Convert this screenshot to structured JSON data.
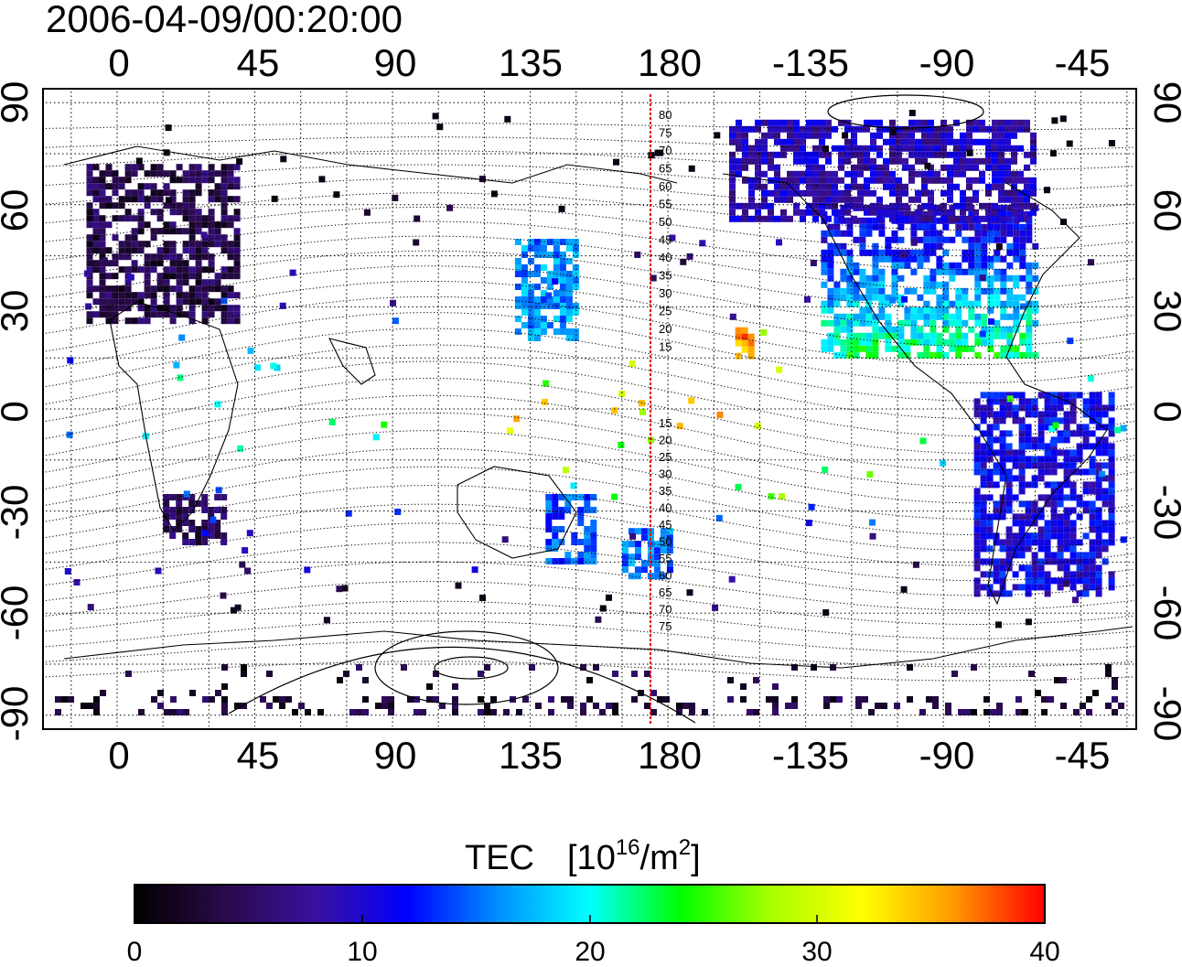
{
  "timestamp": "2006-04-09/00:20:00",
  "axes": {
    "top_lon_ticks": [
      "0",
      "45",
      "90",
      "135",
      "180",
      "-135",
      "-90",
      "-45"
    ],
    "bottom_lon_ticks": [
      "0",
      "45",
      "90",
      "135",
      "180",
      "-135",
      "-90",
      "-45"
    ],
    "left_lat_ticks": [
      "90",
      "60",
      "30",
      "0",
      "-30",
      "-60",
      "-90"
    ],
    "right_lat_ticks": [
      "90",
      "60",
      "30",
      "0",
      "-30",
      "-60",
      "-90"
    ]
  },
  "colorbar": {
    "title": "TEC",
    "unit_base": "[10",
    "unit_exp": "16",
    "unit_mid": "/m",
    "unit_exp2": "2",
    "unit_close": "]",
    "ticks": [
      "0",
      "10",
      "20",
      "30",
      "40"
    ],
    "range": [
      0,
      40
    ],
    "gradient": [
      "#000000",
      "#2a0a4a",
      "#3a10a0",
      "#0000ff",
      "#0090ff",
      "#00ffff",
      "#00ff00",
      "#aaff00",
      "#ffff00",
      "#ff9900",
      "#ff0000"
    ]
  },
  "meridian": {
    "lon": 175,
    "color": "#e00000",
    "labels_north": [
      "80",
      "75",
      "70",
      "65",
      "60",
      "55",
      "50",
      "45",
      "40",
      "35",
      "30",
      "25",
      "20",
      "15"
    ],
    "labels_south": [
      "15",
      "20",
      "25",
      "30",
      "35",
      "40",
      "45",
      "50",
      "55",
      "60",
      "65",
      "70",
      "75"
    ]
  },
  "tec_regions": [
    {
      "name": "europe",
      "lon": [
        -10,
        40
      ],
      "lat": [
        25,
        72
      ],
      "tec": 4
    },
    {
      "name": "north-america",
      "lon": [
        -130,
        -60
      ],
      "lat": [
        15,
        60
      ],
      "tec": 15
    },
    {
      "name": "canada-arctic",
      "lon": [
        -160,
        -60
      ],
      "lat": [
        55,
        85
      ],
      "tec": 9
    },
    {
      "name": "japan",
      "lon": [
        130,
        150
      ],
      "lat": [
        20,
        50
      ],
      "tec": 16
    },
    {
      "name": "south-america",
      "lon": [
        -80,
        -35
      ],
      "lat": [
        -55,
        5
      ],
      "tec": 11
    },
    {
      "name": "australia",
      "lon": [
        140,
        155
      ],
      "lat": [
        -45,
        -25
      ],
      "tec": 14
    },
    {
      "name": "new-zealand",
      "lon": [
        165,
        180
      ],
      "lat": [
        -50,
        -35
      ],
      "tec": 15
    },
    {
      "name": "hawaii",
      "lon": [
        -158,
        -152
      ],
      "lat": [
        15,
        24
      ],
      "tec": 36
    },
    {
      "name": "south-africa",
      "lon": [
        15,
        35
      ],
      "lat": [
        -40,
        -25
      ],
      "tec": 5
    },
    {
      "name": "antarctic",
      "lon": [
        -180,
        180
      ],
      "lat": [
        -90,
        -75
      ],
      "tec": 3
    }
  ]
}
